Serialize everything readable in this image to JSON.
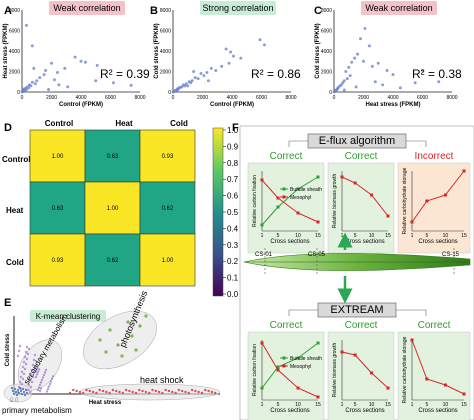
{
  "panel_letters": [
    "A",
    "B",
    "C",
    "D",
    "E",
    "F"
  ],
  "chart_data": [
    {
      "panel": "A",
      "type": "scatter",
      "badge": "Weak correlation",
      "badge_color": "#f4c2cb",
      "r2": "R² = 0.39",
      "xlabel": "Control (FPKM)",
      "ylabel": "Heat stress (FPKM)",
      "xlim": [
        0,
        8000
      ],
      "ylim": [
        0,
        8000
      ],
      "xticks": [
        "0",
        "2000",
        "4000",
        "6000",
        "8000"
      ],
      "yticks": [
        "0",
        "2000",
        "4000",
        "6000",
        "8000"
      ],
      "point_color": "#6d87c9",
      "points": [
        [
          4000,
          3000
        ],
        [
          4300,
          2900
        ],
        [
          5100,
          2600
        ],
        [
          3600,
          3400
        ],
        [
          2900,
          2300
        ],
        [
          2400,
          1900
        ],
        [
          2000,
          2800
        ],
        [
          1600,
          2100
        ],
        [
          1500,
          1700
        ],
        [
          1200,
          1400
        ],
        [
          1000,
          1100
        ],
        [
          900,
          800
        ],
        [
          700,
          950
        ],
        [
          600,
          600
        ],
        [
          500,
          700
        ],
        [
          450,
          400
        ],
        [
          350,
          500
        ],
        [
          300,
          250
        ],
        [
          250,
          350
        ],
        [
          200,
          150
        ],
        [
          150,
          300
        ],
        [
          120,
          120
        ],
        [
          100,
          200
        ],
        [
          80,
          60
        ],
        [
          60,
          150
        ],
        [
          50,
          40
        ],
        [
          40,
          90
        ],
        [
          30,
          20
        ],
        [
          20,
          60
        ],
        [
          10,
          10
        ],
        [
          6200,
          900
        ],
        [
          7400,
          650
        ],
        [
          3100,
          500
        ],
        [
          5000,
          1100
        ],
        [
          2500,
          700
        ],
        [
          800,
          2300
        ],
        [
          700,
          4500
        ],
        [
          300,
          6500
        ],
        [
          1800,
          250
        ],
        [
          2200,
          1200
        ]
      ]
    },
    {
      "panel": "B",
      "type": "scatter",
      "badge": "Strong correlation",
      "badge_color": "#c8ecd6",
      "r2": "R² = 0.86",
      "xlabel": "Control (FPKM)",
      "ylabel": "Cold stress (FPKM)",
      "xlim": [
        0,
        8000
      ],
      "ylim": [
        0,
        8000
      ],
      "xticks": [
        "0",
        "2000",
        "4000",
        "6000",
        "8000"
      ],
      "yticks": [
        "0",
        "2000",
        "4000",
        "6000",
        "8000"
      ],
      "point_color": "#6d87c9",
      "points": [
        [
          5900,
          5100
        ],
        [
          3900,
          3900
        ],
        [
          4100,
          3500
        ],
        [
          3800,
          2800
        ],
        [
          3300,
          2500
        ],
        [
          2900,
          2100
        ],
        [
          2600,
          2300
        ],
        [
          2300,
          1900
        ],
        [
          2100,
          1600
        ],
        [
          1900,
          1800
        ],
        [
          1700,
          1300
        ],
        [
          1500,
          1400
        ],
        [
          1300,
          1100
        ],
        [
          1200,
          900
        ],
        [
          1100,
          1000
        ],
        [
          900,
          800
        ],
        [
          800,
          600
        ],
        [
          700,
          700
        ],
        [
          600,
          500
        ],
        [
          500,
          450
        ],
        [
          400,
          400
        ],
        [
          350,
          250
        ],
        [
          300,
          300
        ],
        [
          250,
          200
        ],
        [
          200,
          150
        ],
        [
          150,
          120
        ],
        [
          100,
          90
        ],
        [
          80,
          60
        ],
        [
          60,
          40
        ],
        [
          40,
          30
        ],
        [
          20,
          15
        ],
        [
          10,
          8
        ],
        [
          1400,
          2000
        ],
        [
          2400,
          1100
        ],
        [
          3600,
          4200
        ],
        [
          1000,
          600
        ],
        [
          4600,
          3300
        ],
        [
          6200,
          4600
        ]
      ]
    },
    {
      "panel": "C",
      "type": "scatter",
      "badge": "Weak correlation",
      "badge_color": "#f4c2cb",
      "r2": "R² = 0.38",
      "xlabel": "Heat stress (FPKM)",
      "ylabel": "Cold stress (FPKM)",
      "xlim": [
        0,
        8000
      ],
      "ylim": [
        0,
        8000
      ],
      "xticks": [
        "0",
        "2000",
        "4000",
        "6000",
        "8000"
      ],
      "yticks": [
        "0",
        "2000",
        "4000",
        "6000",
        "8000"
      ],
      "point_color": "#6d87c9",
      "points": [
        [
          2100,
          6200
        ],
        [
          1800,
          5200
        ],
        [
          2400,
          4500
        ],
        [
          1600,
          3700
        ],
        [
          1400,
          3300
        ],
        [
          2000,
          3000
        ],
        [
          1200,
          2900
        ],
        [
          1000,
          2400
        ],
        [
          800,
          2000
        ],
        [
          2600,
          2500
        ],
        [
          3000,
          2800
        ],
        [
          3600,
          2100
        ],
        [
          1100,
          1600
        ],
        [
          900,
          1300
        ],
        [
          700,
          1100
        ],
        [
          600,
          900
        ],
        [
          500,
          700
        ],
        [
          400,
          600
        ],
        [
          300,
          450
        ],
        [
          250,
          350
        ],
        [
          200,
          250
        ],
        [
          150,
          200
        ],
        [
          100,
          120
        ],
        [
          80,
          80
        ],
        [
          50,
          50
        ],
        [
          30,
          20
        ],
        [
          10,
          10
        ],
        [
          6000,
          2100
        ],
        [
          7100,
          1000
        ],
        [
          5500,
          900
        ],
        [
          3300,
          700
        ],
        [
          2800,
          1000
        ],
        [
          4000,
          1700
        ],
        [
          1500,
          500
        ],
        [
          700,
          200
        ],
        [
          4500,
          400
        ]
      ]
    },
    {
      "panel": "D",
      "type": "heatmap",
      "columns": [
        "Control",
        "Heat",
        "Cold"
      ],
      "rows": [
        "Control",
        "Heat",
        "Cold"
      ],
      "values": [
        [
          "1.00",
          "0.63",
          "0.93"
        ],
        [
          "0.63",
          "1.00",
          "0.62"
        ],
        [
          "0.93",
          "0.62",
          "1.00"
        ]
      ],
      "colorbar_ticks": [
        "1.0",
        "0.9",
        "0.8",
        "0.7",
        "0.6",
        "0.5",
        "0.4",
        "0.3",
        "0.2",
        "0.1",
        "0.0"
      ],
      "color_high": "#fbe625",
      "color_mid": "#21a685"
    },
    {
      "panel": "E",
      "type": "scatter",
      "badge": "K-mean clustering",
      "badge_color": "#c8ecd6",
      "xlabel": "Heat stress",
      "ylabel": "Cold stress",
      "origin_label": "0.0",
      "clusters": [
        {
          "name": "photosynthesis",
          "color": "#7ab648"
        },
        {
          "name": "secondary metabolism",
          "color": "#a77fd6"
        },
        {
          "name": "heat shock",
          "color": "#d9534f"
        },
        {
          "name": "primary metabolism",
          "color": "#5b7fc8"
        }
      ]
    },
    {
      "panel": "F",
      "type": "line",
      "methods": [
        {
          "title": "E-flux algorithm",
          "verdicts": [
            "Correct",
            "Correct",
            "Incorrect"
          ],
          "verdict_colors": [
            "#2ca02c",
            "#2ca02c",
            "#d62728"
          ]
        },
        {
          "title": "EXTREAM",
          "verdicts": [
            "Correct",
            "Correct",
            "Correct"
          ],
          "verdict_colors": [
            "#2ca02c",
            "#2ca02c",
            "#2ca02c"
          ]
        }
      ],
      "ylabels": [
        "Relative carbon fixation",
        "Relative biomass growth",
        "Relative carbohydrate storage"
      ],
      "xlabel": "Cross sections",
      "xticks": [
        "1",
        "5",
        "10",
        "15"
      ],
      "legend": [
        {
          "name": "Bundle sheath",
          "color": "#2ca02c"
        },
        {
          "name": "Mesophyl",
          "color": "#d62728"
        }
      ],
      "cs_labels": [
        "CS-01",
        "CS-05",
        "CS-15"
      ],
      "eflux": {
        "carbon": {
          "bundle_sheath": [
            [
              1,
              0.1
            ],
            [
              5,
              0.4
            ],
            [
              10,
              0.7
            ],
            [
              15,
              0.9
            ]
          ],
          "mesophyl": [
            [
              1,
              0.85
            ],
            [
              5,
              0.55
            ],
            [
              10,
              0.3
            ],
            [
              15,
              0.15
            ]
          ]
        },
        "biomass": [
          [
            1,
            0.9
          ],
          [
            5,
            0.8
          ],
          [
            10,
            0.6
          ],
          [
            15,
            0.25
          ]
        ],
        "carbohydrate": [
          [
            1,
            0.15
          ],
          [
            5,
            0.5
          ],
          [
            10,
            0.6
          ],
          [
            15,
            1.0
          ]
        ]
      },
      "extream": {
        "carbon": {
          "bundle_sheath": [
            [
              1,
              0.2
            ],
            [
              5,
              0.55
            ],
            [
              10,
              0.7
            ],
            [
              15,
              0.95
            ]
          ],
          "mesophyl": [
            [
              1,
              0.95
            ],
            [
              5,
              0.5
            ],
            [
              10,
              0.2
            ],
            [
              15,
              0.05
            ]
          ]
        },
        "biomass": [
          [
            1,
            0.8
          ],
          [
            5,
            0.75
          ],
          [
            10,
            0.45
          ],
          [
            15,
            0.2
          ]
        ],
        "carbohydrate": [
          [
            1,
            1.0
          ],
          [
            5,
            0.35
          ],
          [
            10,
            0.25
          ],
          [
            15,
            0.1
          ]
        ]
      }
    }
  ]
}
